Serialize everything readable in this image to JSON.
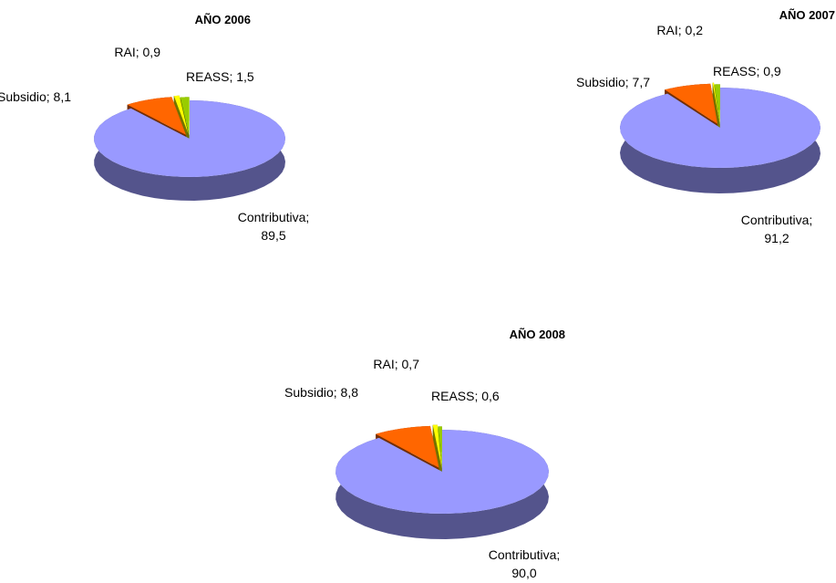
{
  "chart_data": [
    {
      "type": "pie",
      "title": "AÑO 2006",
      "slices": [
        {
          "name": "Contributiva",
          "value": 89.5,
          "value_label": "89,5",
          "color": "#9999ff"
        },
        {
          "name": "Subsidio",
          "value": 8.1,
          "value_label": "8,1",
          "color": "#ff6600"
        },
        {
          "name": "RAI",
          "value": 0.9,
          "value_label": "0,9",
          "color": "#ffff00"
        },
        {
          "name": "REASS",
          "value": 1.5,
          "value_label": "1,5",
          "color": "#99cc00"
        }
      ],
      "exploded": "all"
    },
    {
      "type": "pie",
      "title": "AÑO 2007",
      "slices": [
        {
          "name": "Contributiva",
          "value": 91.2,
          "value_label": "91,2",
          "color": "#9999ff"
        },
        {
          "name": "Subsidio",
          "value": 7.7,
          "value_label": "7,7",
          "color": "#ff6600"
        },
        {
          "name": "RAI",
          "value": 0.2,
          "value_label": "0,2",
          "color": "#ffff00"
        },
        {
          "name": "REASS",
          "value": 0.9,
          "value_label": "0,9",
          "color": "#99cc00"
        }
      ],
      "exploded": "all"
    },
    {
      "type": "pie",
      "title": "AÑO 2008",
      "slices": [
        {
          "name": "Contributiva",
          "value": 90.0,
          "value_label": "90,0",
          "color": "#9999ff"
        },
        {
          "name": "Subsidio",
          "value": 8.8,
          "value_label": "8,8",
          "color": "#ff6600"
        },
        {
          "name": "RAI",
          "value": 0.7,
          "value_label": "0,7",
          "color": "#ffff00"
        },
        {
          "name": "REASS",
          "value": 0.6,
          "value_label": "0,6",
          "color": "#99cc00"
        }
      ],
      "exploded": "all"
    }
  ]
}
